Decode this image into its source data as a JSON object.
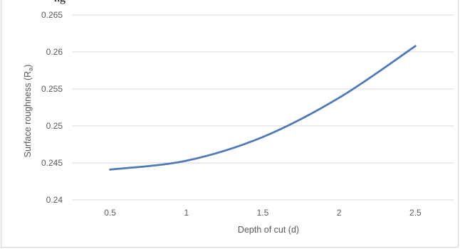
{
  "caption": "ng",
  "chart_data": {
    "type": "line",
    "title": "",
    "xlabel": "Depth of cut (d)",
    "ylabel": "Surface roughness (R",
    "ylabel_subscript": "a",
    "ylabel_suffix": ")",
    "categories": [
      "0.5",
      "1",
      "1.5",
      "2",
      "2.5"
    ],
    "series": [
      {
        "values": [
          0.2441,
          0.2453,
          0.2485,
          0.2538,
          0.2608
        ],
        "color": "#4f79b4"
      }
    ],
    "ylim": [
      0.24,
      0.265
    ],
    "yticks": [
      "0.24",
      "0.245",
      "0.25",
      "0.255",
      "0.26",
      "0.265"
    ],
    "grid": true,
    "smooth": true,
    "legend": "none"
  }
}
